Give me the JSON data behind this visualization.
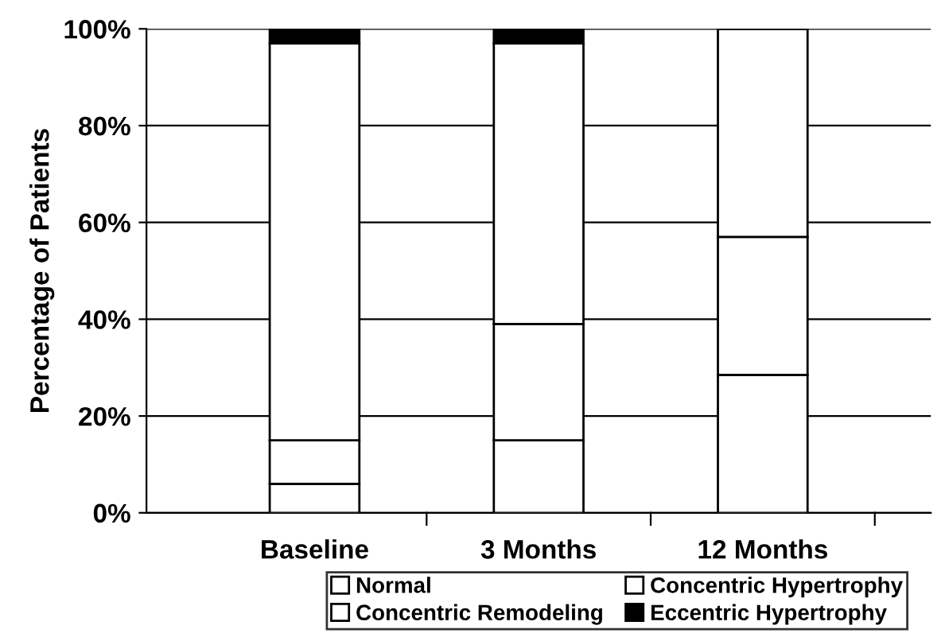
{
  "chart_data": {
    "type": "bar",
    "stacked": true,
    "ylabel": "Percentage of Patients",
    "categories": [
      "Baseline",
      "3 Months",
      "12 Months"
    ],
    "series": [
      {
        "name": "Normal",
        "color": "#ffffff",
        "values": [
          6,
          15,
          28.5
        ]
      },
      {
        "name": "Concentric Remodeling",
        "color": "#ffffff",
        "values": [
          9,
          24,
          28.5
        ]
      },
      {
        "name": "Concentric Hypertrophy",
        "color": "#ffffff",
        "values": [
          82,
          58,
          43
        ]
      },
      {
        "name": "Eccentric Hypertrophy",
        "color": "#000000",
        "values": [
          3,
          3,
          0
        ]
      }
    ],
    "ylim": [
      0,
      100
    ],
    "yticks": [
      {
        "value": 0,
        "label": "0%"
      },
      {
        "value": 20,
        "label": "20%"
      },
      {
        "value": 40,
        "label": "40%"
      },
      {
        "value": 60,
        "label": "60%"
      },
      {
        "value": 80,
        "label": "80%"
      },
      {
        "value": 100,
        "label": "100%"
      }
    ],
    "grid": "y",
    "legend": "bottom"
  }
}
